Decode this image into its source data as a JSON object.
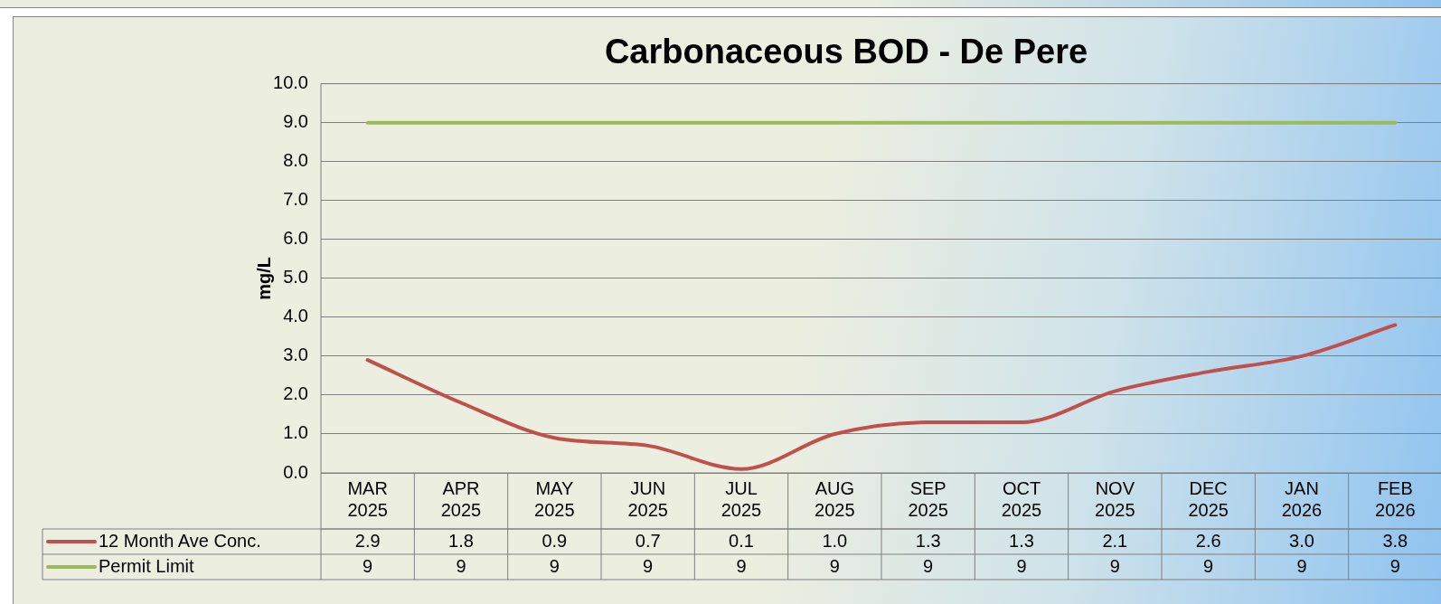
{
  "chart_data": {
    "type": "line",
    "title": "Carbonaceous BOD - De Pere",
    "ylabel": "mg/L",
    "categories": [
      "MAR 2025",
      "APR 2025",
      "MAY 2025",
      "JUN 2025",
      "JUL 2025",
      "AUG 2025",
      "SEP 2025",
      "OCT 2025",
      "NOV 2025",
      "DEC 2025",
      "JAN 2026",
      "FEB 2026"
    ],
    "series": [
      {
        "name": "12 Month Ave Conc.",
        "color": "#c0504d",
        "values": [
          2.9,
          1.8,
          0.9,
          0.7,
          0.1,
          1.0,
          1.3,
          1.3,
          2.1,
          2.6,
          3.0,
          3.8
        ],
        "value_labels": [
          "2.9",
          "1.8",
          "0.9",
          "0.7",
          "0.1",
          "1.0",
          "1.3",
          "1.3",
          "2.1",
          "2.6",
          "3.0",
          "3.8"
        ]
      },
      {
        "name": "Permit Limit",
        "color": "#9bbb59",
        "values": [
          9,
          9,
          9,
          9,
          9,
          9,
          9,
          9,
          9,
          9,
          9,
          9
        ],
        "value_labels": [
          "9",
          "9",
          "9",
          "9",
          "9",
          "9",
          "9",
          "9",
          "9",
          "9",
          "9",
          "9"
        ]
      }
    ],
    "ylim": [
      0,
      10
    ],
    "yticks": [
      {
        "value": 0,
        "label": "0.0"
      },
      {
        "value": 1,
        "label": "1.0"
      },
      {
        "value": 2,
        "label": "2.0"
      },
      {
        "value": 3,
        "label": "3.0"
      },
      {
        "value": 4,
        "label": "4.0"
      },
      {
        "value": 5,
        "label": "5.0"
      },
      {
        "value": 6,
        "label": "6.0"
      },
      {
        "value": 7,
        "label": "7.0"
      },
      {
        "value": 8,
        "label": "8.0"
      },
      {
        "value": 9,
        "label": "9.0"
      },
      {
        "value": 10,
        "label": "10.0"
      }
    ],
    "grid": "y",
    "legend": "bottom",
    "marker": "none",
    "line_style": "solid"
  }
}
